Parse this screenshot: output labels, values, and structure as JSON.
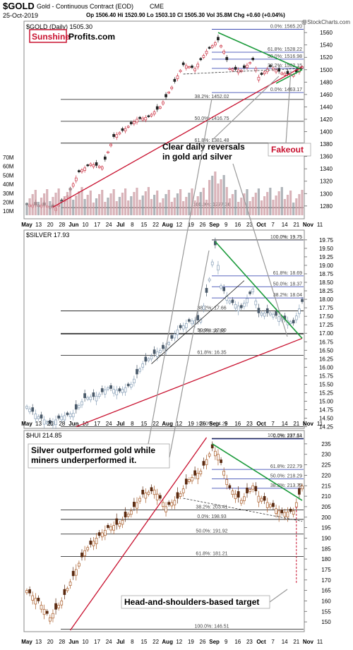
{
  "header": {
    "symbol": "$GOLD",
    "description": "Gold - Continuous Contract (EOD)",
    "exchange": "CME",
    "date": "25-Oct-2019",
    "ohlc": "Op 1506.40  Hi 1520.90  Lo 1503.10  Cl 1505.30  Vol 35.8M  Chg +0.60 (+0.04%)",
    "credit": "@StockCharts.com"
  },
  "logo": {
    "word1": "Sunshine",
    "word2": "Profits.com"
  },
  "colors": {
    "up": "#cc3344",
    "down": "#222222",
    "silver_up": "#88a0b8",
    "hui_up": "#a85a26",
    "trend_red": "#c8102e",
    "trend_green": "#1a9a3a",
    "fib_blue": "#2233aa",
    "volume": "#cfa0a8"
  },
  "x_axis_labels": [
    "May",
    "13",
    "20",
    "28",
    "Jun",
    "10",
    "17",
    "24",
    "Jul",
    "8",
    "15",
    "22",
    "Aug",
    "12",
    "19",
    "26",
    "Sep",
    "9",
    "16",
    "23",
    "Oct",
    "7",
    "14",
    "21",
    "Nov",
    "11"
  ],
  "chart_data": [
    {
      "type": "candlestick",
      "title": "$GOLD (Daily) 1505.30",
      "ylim": [
        1265,
        1567
      ],
      "yticks": [
        1280,
        1300,
        1320,
        1340,
        1360,
        1380,
        1400,
        1420,
        1440,
        1460,
        1480,
        1500,
        1520,
        1540,
        1560
      ],
      "volume_ticks": [
        "70M",
        "60M",
        "50M",
        "40M",
        "30M",
        "20M",
        "10M"
      ],
      "fib_levels": [
        {
          "label": "0.0%: 1565.20",
          "value": 1565.2
        },
        {
          "label": "61.8%: 1528.22",
          "value": 1528.22
        },
        {
          "label": "50.0%: 1516.98",
          "value": 1516.98
        },
        {
          "label": "38.2%: 1502.15",
          "value": 1502.15
        },
        {
          "label": "0.0%: 1463.17",
          "value": 1463.17
        },
        {
          "label": "38.2%: 1452.02",
          "value": 1452.02
        },
        {
          "label": "50.0%: 1416.75",
          "value": 1416.75
        },
        {
          "label": "61.8%: 1381.48",
          "value": 1381.48
        },
        {
          "label": "100.0%: 1277.30",
          "value": 1277.3
        }
      ],
      "anchors": [
        {
          "i": 0,
          "v": 1282
        },
        {
          "i": 6,
          "v": 1281
        },
        {
          "i": 10,
          "v": 1277
        },
        {
          "i": 14,
          "v": 1296
        },
        {
          "i": 18,
          "v": 1335
        },
        {
          "i": 22,
          "v": 1348
        },
        {
          "i": 26,
          "v": 1343
        },
        {
          "i": 30,
          "v": 1392
        },
        {
          "i": 34,
          "v": 1405
        },
        {
          "i": 38,
          "v": 1420
        },
        {
          "i": 42,
          "v": 1424
        },
        {
          "i": 46,
          "v": 1440
        },
        {
          "i": 50,
          "v": 1472
        },
        {
          "i": 54,
          "v": 1508
        },
        {
          "i": 58,
          "v": 1502
        },
        {
          "i": 62,
          "v": 1530
        },
        {
          "i": 66,
          "v": 1548
        },
        {
          "i": 68,
          "v": 1530
        },
        {
          "i": 70,
          "v": 1502
        },
        {
          "i": 74,
          "v": 1499
        },
        {
          "i": 78,
          "v": 1516
        },
        {
          "i": 80,
          "v": 1488
        },
        {
          "i": 84,
          "v": 1505
        },
        {
          "i": 88,
          "v": 1495
        },
        {
          "i": 92,
          "v": 1492
        },
        {
          "i": 95,
          "v": 1505
        }
      ]
    },
    {
      "type": "candlestick",
      "title": "$SILVER 17.93",
      "ylim": [
        14.2,
        19.83
      ],
      "yticks": [
        14.25,
        14.5,
        14.75,
        15.0,
        15.25,
        15.5,
        15.75,
        16.0,
        16.25,
        16.5,
        16.75,
        17.0,
        17.25,
        17.5,
        17.75,
        18.0,
        18.25,
        18.5,
        18.75,
        19.0,
        19.25,
        19.5,
        19.75
      ],
      "fib_levels": [
        {
          "label": "0.0%: 19.75",
          "value": 19.75
        },
        {
          "label": "100.0%: 19.75",
          "value": 19.75
        },
        {
          "label": "61.8%: 18.69",
          "value": 18.69
        },
        {
          "label": "50.0%: 18.37",
          "value": 18.37
        },
        {
          "label": "38.2%: 18.04",
          "value": 18.04
        },
        {
          "label": "38.2%: 17.66",
          "value": 17.66
        },
        {
          "label": "50.0%: 17.00",
          "value": 17.0
        },
        {
          "label": "0.0%: 16.98",
          "value": 16.98
        },
        {
          "label": "61.8%: 16.35",
          "value": 16.35
        },
        {
          "label": "100.0%: 14.25",
          "value": 14.25
        }
      ],
      "anchors": [
        {
          "i": 0,
          "v": 14.85
        },
        {
          "i": 4,
          "v": 14.55
        },
        {
          "i": 8,
          "v": 14.35
        },
        {
          "i": 12,
          "v": 14.55
        },
        {
          "i": 16,
          "v": 14.65
        },
        {
          "i": 20,
          "v": 15.1
        },
        {
          "i": 24,
          "v": 15.15
        },
        {
          "i": 28,
          "v": 15.4
        },
        {
          "i": 32,
          "v": 15.3
        },
        {
          "i": 36,
          "v": 15.5
        },
        {
          "i": 40,
          "v": 16.1
        },
        {
          "i": 44,
          "v": 16.4
        },
        {
          "i": 48,
          "v": 16.6
        },
        {
          "i": 52,
          "v": 17.1
        },
        {
          "i": 56,
          "v": 17.35
        },
        {
          "i": 60,
          "v": 17.4
        },
        {
          "i": 63,
          "v": 18.6
        },
        {
          "i": 65,
          "v": 19.6
        },
        {
          "i": 67,
          "v": 18.4
        },
        {
          "i": 70,
          "v": 17.95
        },
        {
          "i": 74,
          "v": 17.75
        },
        {
          "i": 78,
          "v": 18.3
        },
        {
          "i": 80,
          "v": 17.6
        },
        {
          "i": 84,
          "v": 17.6
        },
        {
          "i": 88,
          "v": 17.45
        },
        {
          "i": 92,
          "v": 17.3
        },
        {
          "i": 95,
          "v": 17.93
        }
      ]
    },
    {
      "type": "candlestick",
      "title": "$HUI 214.85",
      "ylim": [
        146,
        238
      ],
      "yticks": [
        150,
        155,
        160,
        165,
        170,
        175,
        180,
        185,
        190,
        195,
        200,
        205,
        210,
        215,
        220,
        225,
        230,
        235
      ],
      "fib_levels": [
        {
          "label": "0.0%: 237.34",
          "value": 237.34
        },
        {
          "label": "100.0%: 237.61",
          "value": 237.61
        },
        {
          "label": "61.8%: 222.79",
          "value": 222.79
        },
        {
          "label": "50.0%: 218.29",
          "value": 218.29
        },
        {
          "label": "38.2%: 213.79",
          "value": 213.79
        },
        {
          "label": "38.2%: 203.41",
          "value": 203.41
        },
        {
          "label": "0.0%: 198.93",
          "value": 198.93
        },
        {
          "label": "50.0%: 191.92",
          "value": 191.92
        },
        {
          "label": "61.8%: 181.21",
          "value": 181.21
        },
        {
          "label": "100.0%: 146.51",
          "value": 146.51
        }
      ],
      "anchors": [
        {
          "i": 0,
          "v": 165
        },
        {
          "i": 4,
          "v": 160
        },
        {
          "i": 8,
          "v": 152
        },
        {
          "i": 12,
          "v": 160
        },
        {
          "i": 16,
          "v": 172
        },
        {
          "i": 20,
          "v": 184
        },
        {
          "i": 24,
          "v": 190
        },
        {
          "i": 28,
          "v": 195
        },
        {
          "i": 32,
          "v": 197
        },
        {
          "i": 36,
          "v": 203
        },
        {
          "i": 40,
          "v": 211
        },
        {
          "i": 44,
          "v": 213
        },
        {
          "i": 48,
          "v": 205
        },
        {
          "i": 52,
          "v": 209
        },
        {
          "i": 56,
          "v": 218
        },
        {
          "i": 60,
          "v": 222
        },
        {
          "i": 64,
          "v": 233
        },
        {
          "i": 66,
          "v": 230
        },
        {
          "i": 68,
          "v": 222
        },
        {
          "i": 70,
          "v": 214
        },
        {
          "i": 74,
          "v": 208
        },
        {
          "i": 78,
          "v": 215
        },
        {
          "i": 80,
          "v": 210
        },
        {
          "i": 84,
          "v": 206
        },
        {
          "i": 88,
          "v": 202
        },
        {
          "i": 92,
          "v": 203
        },
        {
          "i": 95,
          "v": 214.85
        }
      ]
    }
  ],
  "annotations": {
    "reversals": "Clear daily reversals\nin gold and silver",
    "fakeout": "Fakeout",
    "outperform": "Silver outperformed gold while\nminers underperformed it.",
    "target": "Head-and-shoulders-based target"
  }
}
